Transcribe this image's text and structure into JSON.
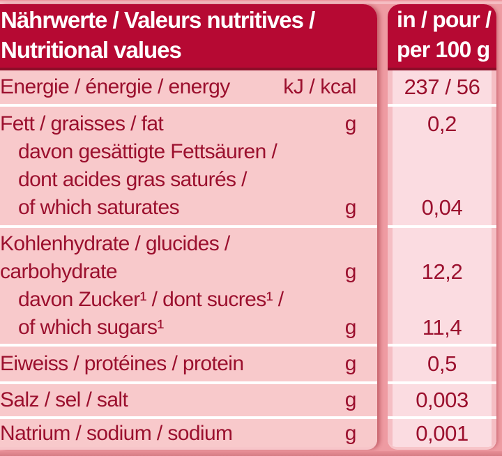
{
  "header": {
    "title_line1": "Nährwerte / Valeurs nutritives /",
    "title_line2": "Nutritional values",
    "unit_line1": "in / pour /",
    "unit_line2": "per 100 g"
  },
  "colors": {
    "header_background": "#b60933",
    "header_border": "#8c0d28",
    "text_maroon": "#9b102e",
    "row_background": "#f8c9cb",
    "value_background": "#fbdce1",
    "outer_frame": "#ee9ba2",
    "separator": "#ffffff"
  },
  "rows": [
    {
      "name": "energy",
      "lines": [
        {
          "text": "Energie / énergie / energy",
          "unit": "kJ / kcal"
        }
      ],
      "values": [
        {
          "slot": 0,
          "text": "237 / 56"
        }
      ]
    },
    {
      "name": "fat",
      "lines": [
        {
          "text": "Fett / graisses / fat",
          "unit": "g"
        },
        {
          "text": "davon gesättigte Fettsäuren /",
          "indent": true
        },
        {
          "text": "dont acides gras saturés /",
          "indent": true
        },
        {
          "text": "of which saturates",
          "indent": true,
          "unit": "g"
        }
      ],
      "values": [
        {
          "slot": 0,
          "text": "0,2"
        },
        {
          "slot": 3,
          "text": "0,04"
        }
      ]
    },
    {
      "name": "carbohydrate",
      "lines": [
        {
          "text": "Kohlenhydrate / glucides /"
        },
        {
          "text": "carbohydrate",
          "unit": "g"
        },
        {
          "text": "davon Zucker¹ / dont sucres¹ /",
          "indent": true
        },
        {
          "text": "of which sugars¹",
          "indent": true,
          "unit": "g"
        }
      ],
      "values": [
        {
          "slot": 1,
          "text": "12,2"
        },
        {
          "slot": 3,
          "text": "11,4"
        }
      ]
    },
    {
      "name": "protein",
      "lines": [
        {
          "text": "Eiweiss / protéines / protein",
          "unit": "g"
        }
      ],
      "values": [
        {
          "slot": 0,
          "text": "0,5"
        }
      ]
    },
    {
      "name": "salt",
      "lines": [
        {
          "text": "Salz / sel / salt",
          "unit": "g"
        }
      ],
      "values": [
        {
          "slot": 0,
          "text": "0,003"
        }
      ]
    },
    {
      "name": "sodium",
      "lines": [
        {
          "text": "Natrium / sodium / sodium",
          "unit": "g"
        }
      ],
      "values": [
        {
          "slot": 0,
          "text": "0,001"
        }
      ]
    }
  ]
}
